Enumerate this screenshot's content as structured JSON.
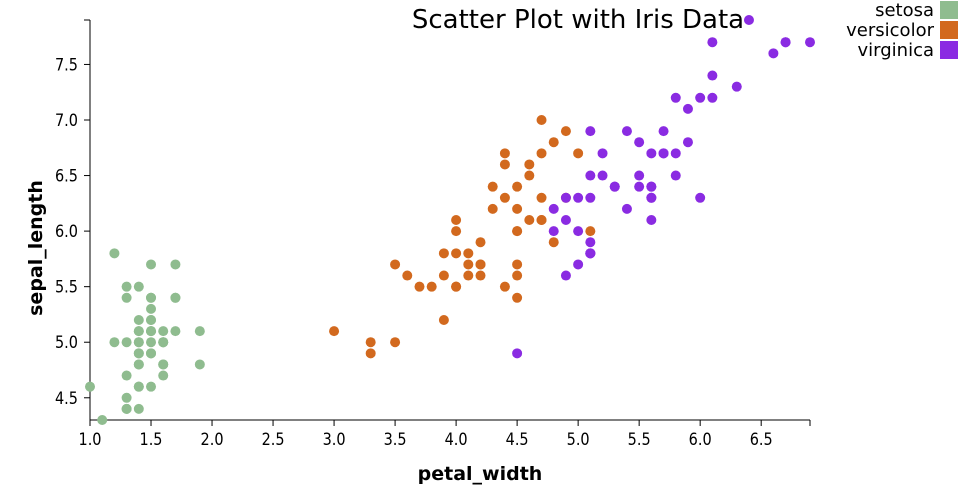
{
  "chart_data": {
    "type": "scatter",
    "title": "Scatter Plot with Iris Data",
    "xlabel": "petal_width",
    "ylabel": "sepal_length",
    "xlim": [
      1.0,
      6.9
    ],
    "ylim": [
      4.3,
      7.9
    ],
    "xticks": [
      "1.0",
      "1.5",
      "2.0",
      "2.5",
      "3.0",
      "3.5",
      "4.0",
      "4.5",
      "5.0",
      "5.5",
      "6.0",
      "6.5"
    ],
    "yticks": [
      "4.5",
      "5.0",
      "5.5",
      "6.0",
      "6.5",
      "7.0",
      "7.5"
    ],
    "grid": false,
    "legend_position": "top-right",
    "series": [
      {
        "name": "setosa",
        "color": "#8fbc8f",
        "points": [
          [
            1.4,
            5.1
          ],
          [
            1.4,
            4.9
          ],
          [
            1.3,
            4.7
          ],
          [
            1.5,
            4.6
          ],
          [
            1.4,
            5.0
          ],
          [
            1.7,
            5.4
          ],
          [
            1.4,
            4.6
          ],
          [
            1.5,
            5.0
          ],
          [
            1.4,
            4.4
          ],
          [
            1.5,
            4.9
          ],
          [
            1.5,
            5.4
          ],
          [
            1.6,
            4.8
          ],
          [
            1.4,
            4.8
          ],
          [
            1.1,
            4.3
          ],
          [
            1.2,
            5.8
          ],
          [
            1.5,
            5.7
          ],
          [
            1.3,
            5.4
          ],
          [
            1.4,
            5.1
          ],
          [
            1.7,
            5.7
          ],
          [
            1.5,
            5.1
          ],
          [
            1.7,
            5.4
          ],
          [
            1.5,
            5.1
          ],
          [
            1.0,
            4.6
          ],
          [
            1.7,
            5.1
          ],
          [
            1.9,
            4.8
          ],
          [
            1.6,
            5.0
          ],
          [
            1.6,
            5.0
          ],
          [
            1.5,
            5.2
          ],
          [
            1.4,
            5.2
          ],
          [
            1.6,
            4.7
          ],
          [
            1.6,
            4.8
          ],
          [
            1.5,
            5.4
          ],
          [
            1.5,
            5.2
          ],
          [
            1.4,
            5.5
          ],
          [
            1.5,
            4.9
          ],
          [
            1.2,
            5.0
          ],
          [
            1.3,
            5.5
          ],
          [
            1.4,
            4.9
          ],
          [
            1.3,
            4.4
          ],
          [
            1.5,
            5.1
          ],
          [
            1.3,
            5.0
          ],
          [
            1.3,
            4.5
          ],
          [
            1.3,
            4.4
          ],
          [
            1.6,
            5.0
          ],
          [
            1.9,
            5.1
          ],
          [
            1.4,
            4.8
          ],
          [
            1.6,
            5.1
          ],
          [
            1.4,
            4.6
          ],
          [
            1.5,
            5.3
          ],
          [
            1.4,
            5.0
          ]
        ]
      },
      {
        "name": "versicolor",
        "color": "#d2691e",
        "points": [
          [
            4.7,
            7.0
          ],
          [
            4.5,
            6.4
          ],
          [
            4.9,
            6.9
          ],
          [
            4.0,
            5.5
          ],
          [
            4.6,
            6.5
          ],
          [
            4.5,
            5.7
          ],
          [
            4.7,
            6.3
          ],
          [
            3.3,
            4.9
          ],
          [
            4.6,
            6.6
          ],
          [
            3.9,
            5.2
          ],
          [
            3.5,
            5.0
          ],
          [
            4.2,
            5.9
          ],
          [
            4.0,
            6.0
          ],
          [
            4.7,
            6.1
          ],
          [
            3.6,
            5.6
          ],
          [
            4.4,
            6.7
          ],
          [
            4.5,
            5.6
          ],
          [
            4.1,
            5.8
          ],
          [
            4.5,
            6.2
          ],
          [
            3.9,
            5.6
          ],
          [
            4.8,
            5.9
          ],
          [
            4.0,
            6.1
          ],
          [
            4.9,
            6.3
          ],
          [
            4.7,
            6.1
          ],
          [
            4.3,
            6.4
          ],
          [
            4.4,
            6.6
          ],
          [
            4.8,
            6.8
          ],
          [
            5.0,
            6.7
          ],
          [
            4.5,
            6.0
          ],
          [
            3.5,
            5.7
          ],
          [
            3.8,
            5.5
          ],
          [
            3.7,
            5.5
          ],
          [
            3.9,
            5.8
          ],
          [
            5.1,
            6.0
          ],
          [
            4.5,
            5.4
          ],
          [
            4.5,
            6.0
          ],
          [
            4.7,
            6.7
          ],
          [
            4.4,
            6.3
          ],
          [
            4.1,
            5.6
          ],
          [
            4.0,
            5.5
          ],
          [
            4.4,
            5.5
          ],
          [
            4.6,
            6.1
          ],
          [
            4.0,
            5.8
          ],
          [
            3.3,
            5.0
          ],
          [
            4.2,
            5.6
          ],
          [
            4.2,
            5.7
          ],
          [
            4.2,
            5.7
          ],
          [
            4.3,
            6.2
          ],
          [
            3.0,
            5.1
          ],
          [
            4.1,
            5.7
          ]
        ]
      },
      {
        "name": "virginica",
        "color": "#8a2be2",
        "points": [
          [
            6.0,
            6.3
          ],
          [
            5.1,
            5.8
          ],
          [
            5.9,
            7.1
          ],
          [
            5.6,
            6.3
          ],
          [
            5.8,
            6.5
          ],
          [
            6.6,
            7.6
          ],
          [
            4.5,
            4.9
          ],
          [
            6.3,
            7.3
          ],
          [
            5.8,
            6.7
          ],
          [
            6.1,
            7.2
          ],
          [
            5.1,
            6.5
          ],
          [
            5.3,
            6.4
          ],
          [
            5.5,
            6.8
          ],
          [
            5.0,
            5.7
          ],
          [
            5.1,
            5.8
          ],
          [
            5.3,
            6.4
          ],
          [
            5.5,
            6.5
          ],
          [
            6.7,
            7.7
          ],
          [
            6.9,
            7.7
          ],
          [
            5.0,
            6.0
          ],
          [
            5.7,
            6.9
          ],
          [
            4.9,
            5.6
          ],
          [
            6.7,
            7.7
          ],
          [
            4.9,
            6.3
          ],
          [
            5.7,
            6.7
          ],
          [
            6.0,
            7.2
          ],
          [
            4.8,
            6.2
          ],
          [
            4.9,
            6.1
          ],
          [
            5.6,
            6.4
          ],
          [
            5.8,
            7.2
          ],
          [
            6.1,
            7.4
          ],
          [
            6.4,
            7.9
          ],
          [
            5.6,
            6.4
          ],
          [
            5.1,
            6.3
          ],
          [
            5.6,
            6.1
          ],
          [
            6.1,
            7.7
          ],
          [
            5.6,
            6.3
          ],
          [
            5.5,
            6.4
          ],
          [
            4.8,
            6.0
          ],
          [
            5.4,
            6.9
          ],
          [
            5.6,
            6.7
          ],
          [
            5.1,
            6.9
          ],
          [
            5.1,
            5.8
          ],
          [
            5.9,
            6.8
          ],
          [
            5.7,
            6.7
          ],
          [
            5.2,
            6.7
          ],
          [
            5.0,
            6.3
          ],
          [
            5.2,
            6.5
          ],
          [
            5.4,
            6.2
          ],
          [
            5.1,
            5.9
          ]
        ]
      }
    ]
  }
}
